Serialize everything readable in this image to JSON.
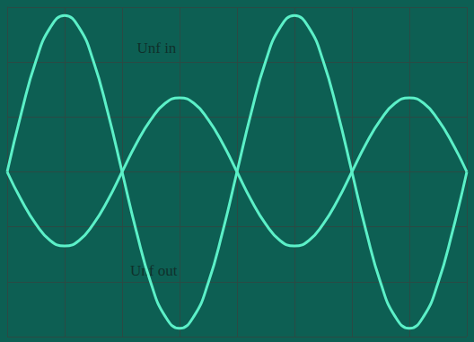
{
  "chart_data": {
    "type": "line",
    "x": [
      0,
      0.25,
      0.5,
      0.75,
      1,
      1.25,
      1.5,
      1.75,
      2,
      2.25,
      2.5,
      2.75,
      3,
      3.25,
      3.5,
      3.75,
      4,
      4.25,
      4.5,
      4.75,
      5,
      5.25,
      5.5,
      5.75,
      6,
      6.25,
      6.5,
      6.75,
      7,
      7.25,
      7.5,
      7.75,
      8
    ],
    "series": [
      {
        "name": "Unf in",
        "color": "#5cf0c8",
        "values": [
          0,
          -0.52,
          -0.95,
          -1.25,
          -1.35,
          -1.25,
          -0.95,
          -0.52,
          0,
          0.52,
          0.95,
          1.25,
          1.35,
          1.25,
          0.95,
          0.52,
          0,
          -0.52,
          -0.95,
          -1.25,
          -1.35,
          -1.25,
          -0.95,
          -0.52,
          0,
          0.52,
          0.95,
          1.25,
          1.35,
          1.25,
          0.95,
          0.52,
          0
        ]
      },
      {
        "name": "Unf out",
        "color": "#5cf0c8",
        "values": [
          0,
          1.09,
          2.02,
          2.63,
          2.85,
          2.63,
          2.02,
          1.09,
          0,
          -1.09,
          -2.02,
          -2.63,
          -2.85,
          -2.63,
          -2.02,
          -1.09,
          0,
          1.09,
          2.02,
          2.63,
          2.85,
          2.63,
          2.02,
          1.09,
          0,
          -1.09,
          -2.02,
          -2.63,
          -2.85,
          -2.63,
          -2.02,
          -1.09,
          0
        ]
      }
    ],
    "annotations": [
      {
        "text": "Unf in",
        "x": 2.6,
        "y": 2.25
      },
      {
        "text": "Unf out",
        "x": 2.55,
        "y": -1.8
      }
    ],
    "xlim": [
      0,
      8
    ],
    "xticks": [
      0,
      1,
      2,
      3,
      4,
      5,
      6,
      7,
      8
    ],
    "ylim": [
      -3,
      3
    ],
    "yticks": [
      -3,
      -2,
      -1,
      0,
      1,
      2,
      3
    ],
    "grid": true,
    "tick_labels": false
  }
}
